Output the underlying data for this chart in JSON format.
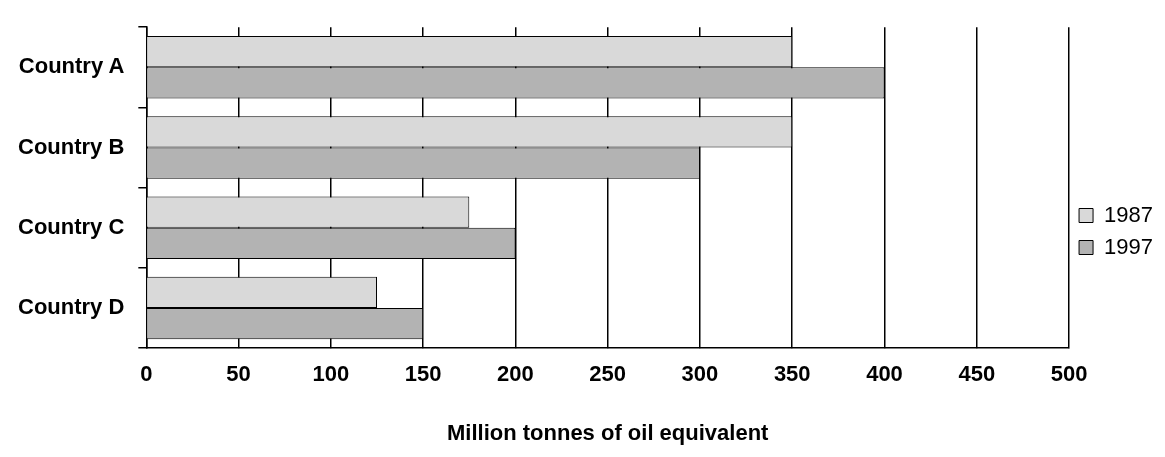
{
  "chart_data": {
    "type": "bar",
    "orientation": "horizontal",
    "xlabel": "Million tonnes of oil equivalent",
    "categories": [
      "Country A",
      "Country B",
      "Country C",
      "Country D"
    ],
    "series": [
      {
        "name": "1987",
        "color": "#d9d9d9",
        "values": [
          350,
          350,
          175,
          125
        ]
      },
      {
        "name": "1997",
        "color": "#b3b3b3",
        "values": [
          400,
          300,
          200,
          150
        ]
      }
    ],
    "xlim": [
      0,
      500
    ],
    "xticks": [
      0,
      50,
      100,
      150,
      200,
      250,
      300,
      350,
      400,
      450,
      500
    ],
    "grid": "x",
    "legend": "right"
  }
}
